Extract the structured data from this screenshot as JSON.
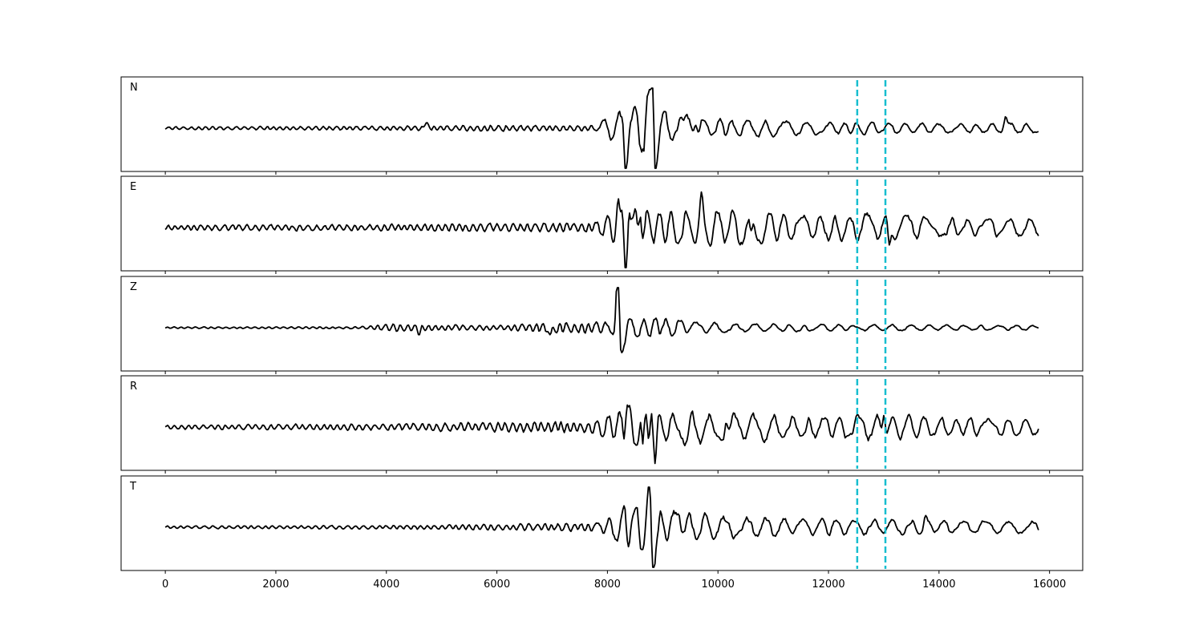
{
  "chart_data": {
    "type": "line",
    "x_range": [
      0,
      15800
    ],
    "xlim": [
      -800,
      16600
    ],
    "x_ticks": [
      0,
      2000,
      4000,
      6000,
      8000,
      10000,
      12000,
      14000,
      16000
    ],
    "x_tick_labels": [
      "0",
      "2000",
      "4000",
      "6000",
      "8000",
      "10000",
      "12000",
      "14000",
      "16000"
    ],
    "markers": [
      12520,
      13030
    ],
    "colors": {
      "trace": "#000000",
      "marker": "#17becf"
    },
    "panels": [
      {
        "label": "N",
        "amplitude_envelope": [
          [
            0,
            0.06
          ],
          [
            4000,
            0.08
          ],
          [
            6000,
            0.12
          ],
          [
            7800,
            0.1
          ],
          [
            8200,
            0.55
          ],
          [
            8800,
            1.0
          ],
          [
            9000,
            0.6
          ],
          [
            9500,
            0.35
          ],
          [
            10500,
            0.28
          ],
          [
            12000,
            0.18
          ],
          [
            13000,
            0.2
          ],
          [
            14000,
            0.15
          ],
          [
            15800,
            0.15
          ]
        ],
        "events": [
          {
            "x": 8820,
            "amp": 1.0
          },
          {
            "x": 8330,
            "amp": -0.8
          },
          {
            "x": 8860,
            "amp": -0.85
          },
          {
            "x": 8720,
            "amp": 0.55
          },
          {
            "x": 4720,
            "amp": 0.18
          },
          {
            "x": 9600,
            "amp": 0.35
          },
          {
            "x": 15200,
            "amp": 0.25
          }
        ]
      },
      {
        "label": "E",
        "amplitude_envelope": [
          [
            0,
            0.1
          ],
          [
            4000,
            0.12
          ],
          [
            6000,
            0.15
          ],
          [
            7800,
            0.2
          ],
          [
            8200,
            0.65
          ],
          [
            8500,
            0.7
          ],
          [
            9000,
            0.55
          ],
          [
            10500,
            0.55
          ],
          [
            12000,
            0.4
          ],
          [
            13000,
            0.45
          ],
          [
            14000,
            0.3
          ],
          [
            15800,
            0.3
          ]
        ],
        "events": [
          {
            "x": 8190,
            "amp": 0.65
          },
          {
            "x": 8330,
            "amp": -1.0
          },
          {
            "x": 8390,
            "amp": 0.7
          },
          {
            "x": 8600,
            "amp": 0.6
          },
          {
            "x": 9700,
            "amp": 0.6
          },
          {
            "x": 13100,
            "amp": -0.6
          },
          {
            "x": 10600,
            "amp": -0.45
          }
        ]
      },
      {
        "label": "Z",
        "amplitude_envelope": [
          [
            0,
            0.03
          ],
          [
            3500,
            0.04
          ],
          [
            4100,
            0.15
          ],
          [
            5000,
            0.12
          ],
          [
            6000,
            0.08
          ],
          [
            7000,
            0.2
          ],
          [
            8100,
            0.2
          ],
          [
            8200,
            1.0
          ],
          [
            8400,
            0.4
          ],
          [
            9000,
            0.3
          ],
          [
            10000,
            0.15
          ],
          [
            12000,
            0.1
          ],
          [
            15800,
            0.08
          ]
        ],
        "events": [
          {
            "x": 8180,
            "amp": 1.0
          },
          {
            "x": 8240,
            "amp": -0.7
          },
          {
            "x": 6970,
            "amp": -0.25
          },
          {
            "x": 8900,
            "amp": 0.25
          },
          {
            "x": 4600,
            "amp": -0.15
          }
        ]
      },
      {
        "label": "R",
        "amplitude_envelope": [
          [
            0,
            0.08
          ],
          [
            4000,
            0.12
          ],
          [
            6000,
            0.18
          ],
          [
            7800,
            0.22
          ],
          [
            8200,
            0.6
          ],
          [
            8800,
            0.85
          ],
          [
            9000,
            0.55
          ],
          [
            10500,
            0.45
          ],
          [
            12000,
            0.35
          ],
          [
            13000,
            0.45
          ],
          [
            14000,
            0.3
          ],
          [
            15800,
            0.25
          ]
        ],
        "events": [
          {
            "x": 8800,
            "amp": 0.85
          },
          {
            "x": 8640,
            "amp": -1.0
          },
          {
            "x": 8350,
            "amp": 0.7
          },
          {
            "x": 8870,
            "amp": -0.9
          },
          {
            "x": 13000,
            "amp": 0.6
          },
          {
            "x": 10150,
            "amp": 0.5
          }
        ]
      },
      {
        "label": "T",
        "amplitude_envelope": [
          [
            0,
            0.05
          ],
          [
            4000,
            0.07
          ],
          [
            6000,
            0.12
          ],
          [
            7800,
            0.15
          ],
          [
            8200,
            0.5
          ],
          [
            8800,
            0.95
          ],
          [
            9000,
            0.55
          ],
          [
            10500,
            0.35
          ],
          [
            12000,
            0.25
          ],
          [
            13000,
            0.25
          ],
          [
            14000,
            0.2
          ],
          [
            15800,
            0.2
          ]
        ],
        "events": [
          {
            "x": 8820,
            "amp": -1.0
          },
          {
            "x": 8760,
            "amp": 0.8
          },
          {
            "x": 8330,
            "amp": 0.85
          },
          {
            "x": 8340,
            "amp": -0.7
          },
          {
            "x": 9300,
            "amp": 0.55
          },
          {
            "x": 13750,
            "amp": 0.25
          }
        ]
      }
    ]
  }
}
